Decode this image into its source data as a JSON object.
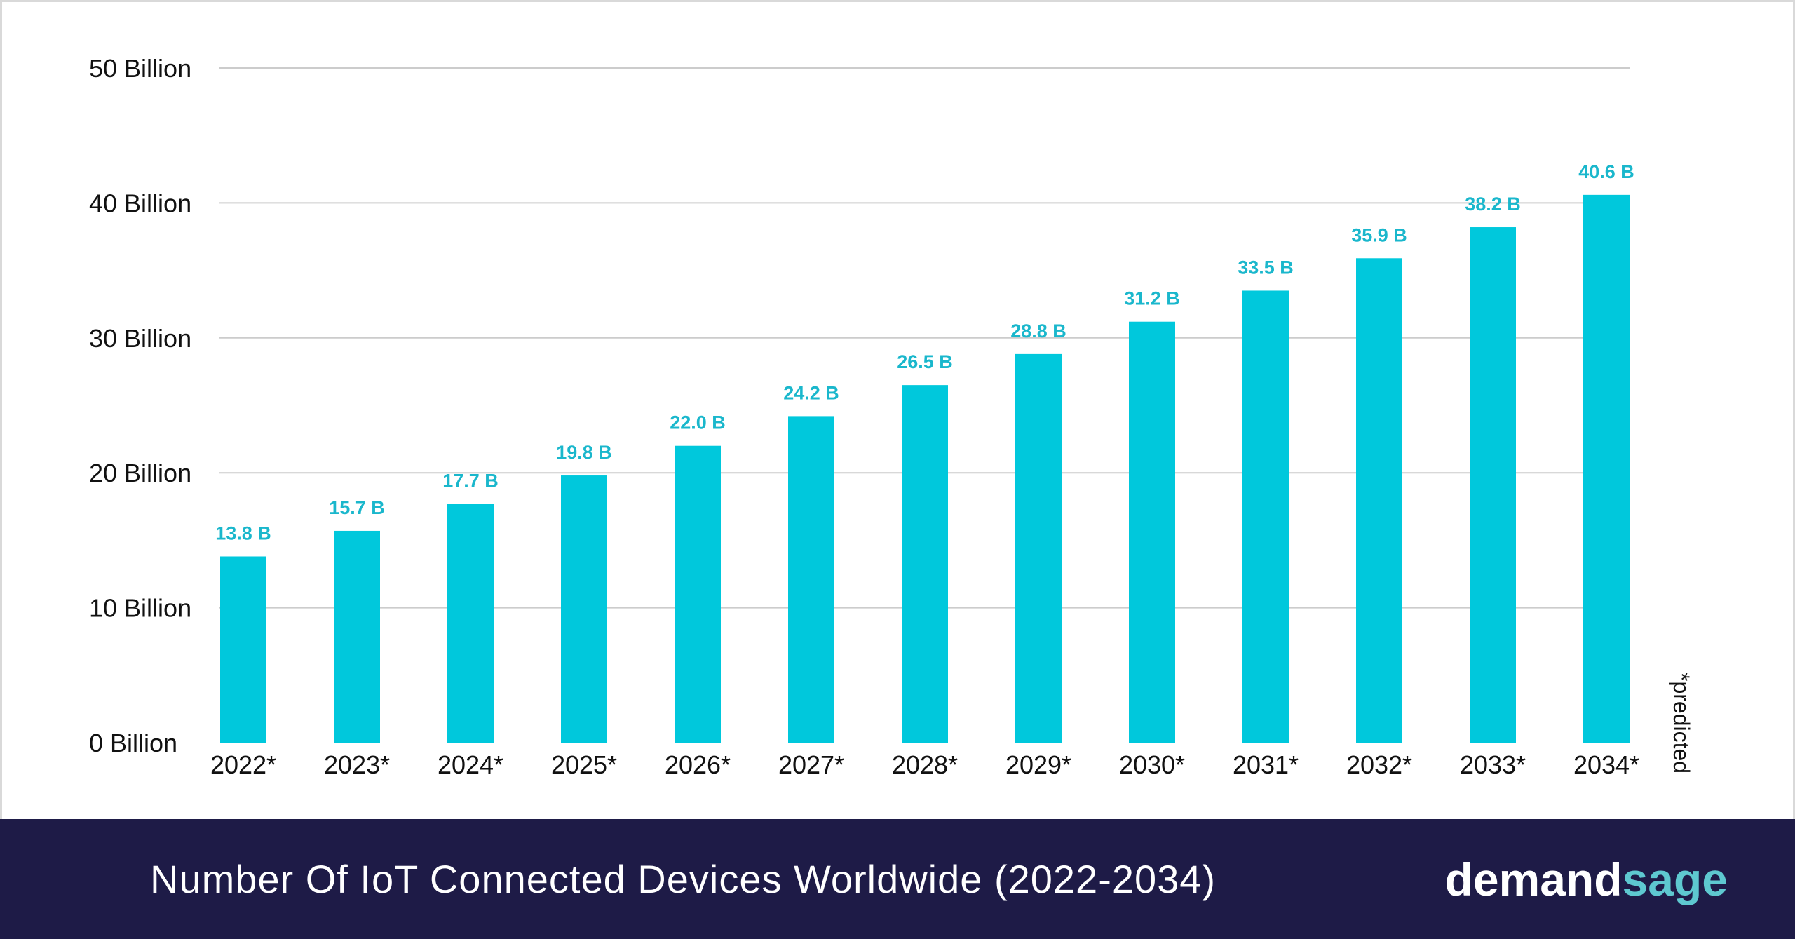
{
  "footer": {
    "title": "Number Of IoT Connected Devices Worldwide (2022-2034)",
    "brand_part1": "demand",
    "brand_part2": "sage"
  },
  "colors": {
    "bar": "#00c8dc",
    "data_label": "#1ab7cc",
    "grid": "#cccccc",
    "footer_bg": "#1e1b47"
  },
  "chart_data": {
    "type": "bar",
    "categories": [
      "2022*",
      "2023*",
      "2024*",
      "2025*",
      "2026*",
      "2027*",
      "2028*",
      "2029*",
      "2030*",
      "2031*",
      "2032*",
      "2033*",
      "2034*"
    ],
    "values": [
      13.8,
      15.7,
      17.7,
      19.8,
      22.0,
      24.2,
      26.5,
      28.8,
      31.2,
      33.5,
      35.9,
      38.2,
      40.6
    ],
    "data_labels": [
      "13.8 B",
      "15.7 B",
      "17.7 B",
      "19.8 B",
      "22.0 B",
      "24.2 B",
      "26.5 B",
      "28.8 B",
      "31.2 B",
      "33.5 B",
      "35.9 B",
      "38.2 B",
      "40.6 B"
    ],
    "y_ticks": [
      0,
      10,
      20,
      30,
      40,
      50
    ],
    "y_tick_labels": [
      "0 Billion",
      "10 Billion",
      "20 Billion",
      "30 Billion",
      "40 Billion",
      "50 Billion"
    ],
    "ylim": [
      0,
      50
    ],
    "grid": true,
    "note": "*predicted",
    "title": "",
    "xlabel": "",
    "ylabel": ""
  }
}
